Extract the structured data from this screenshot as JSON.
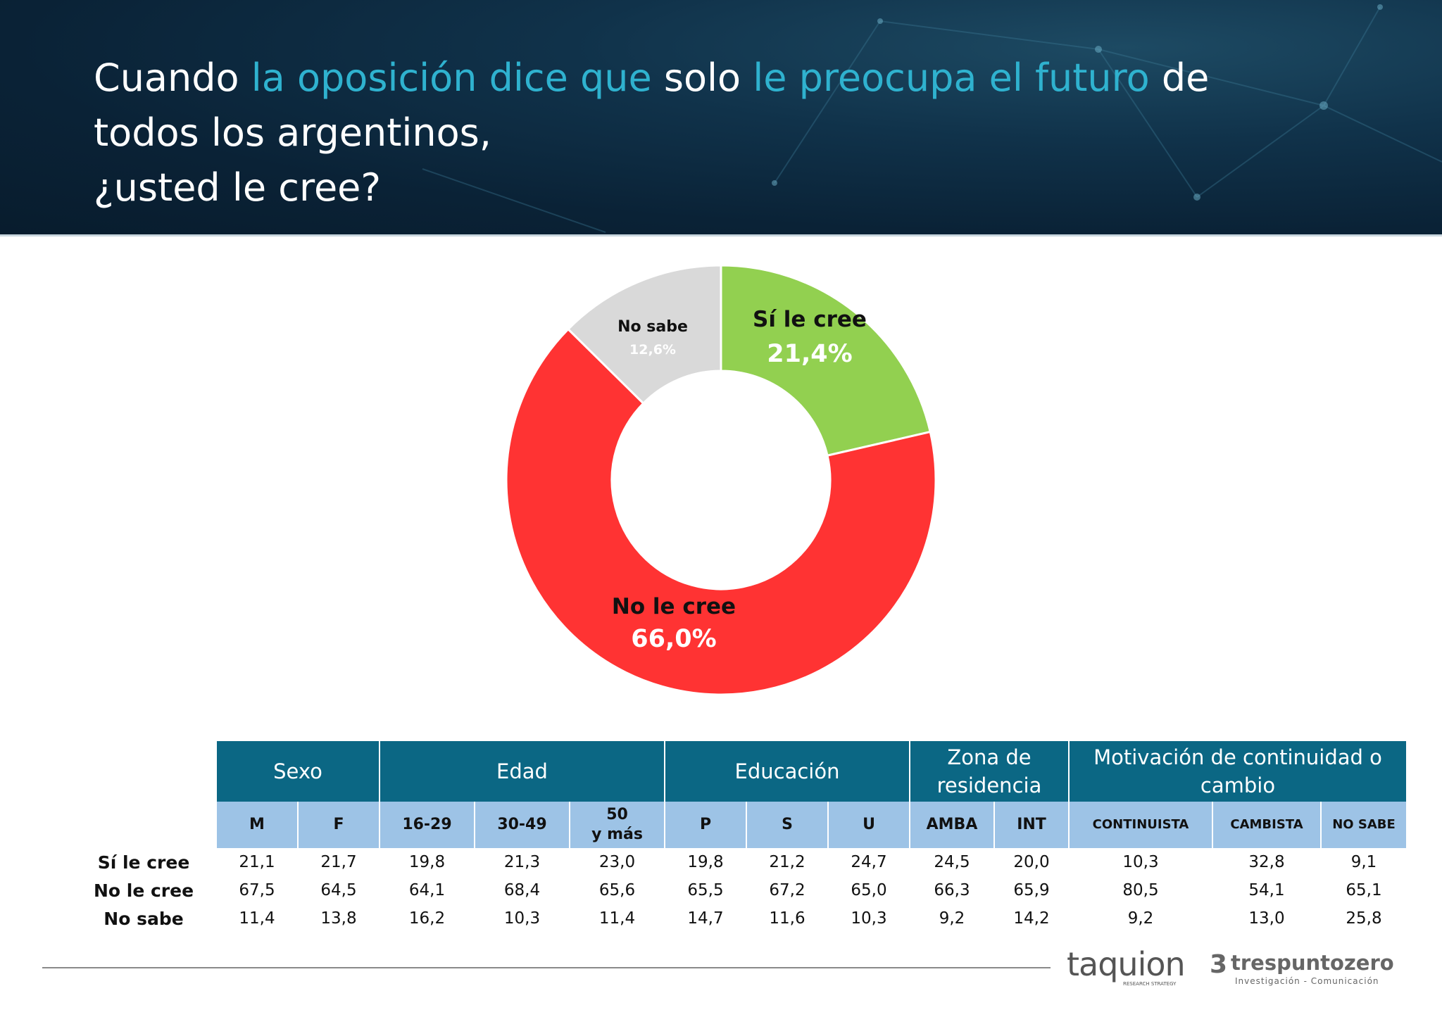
{
  "header": {
    "title_parts": [
      {
        "text": "Cuando ",
        "hl": false
      },
      {
        "text": "la oposición dice que",
        "hl": true
      },
      {
        "text": " solo ",
        "hl": false
      },
      {
        "text": "le preocupa el futuro",
        "hl": true
      },
      {
        "text": " de",
        "hl": false
      }
    ],
    "title_line2": "todos los argentinos,",
    "title_line3": "¿usted le cree?"
  },
  "chart_data": {
    "type": "pie",
    "donut": true,
    "labels": [
      "Sí le cree",
      "No le cree",
      "No sabe"
    ],
    "values": [
      21.4,
      66.0,
      12.6
    ],
    "value_labels": [
      "21,4%",
      "66,0%",
      "12,6%"
    ],
    "colors": [
      "#92d050",
      "#ff3333",
      "#d9d9d9"
    ]
  },
  "table": {
    "groups": [
      "Sexo",
      "Edad",
      "Educación",
      "Zona de residencia",
      "Motivación de continuidad o cambio"
    ],
    "group_lines": {
      "zona": [
        "Zona de",
        "residencia"
      ],
      "motiv": [
        "Motivación de continuidad o",
        "cambio"
      ]
    },
    "columns": [
      "M",
      "F",
      "16-29",
      "30-49",
      "50 y más",
      "P",
      "S",
      "U",
      "AMBA",
      "INT",
      "CONTINUISTA",
      "CAMBISTA",
      "NO SABE"
    ],
    "col_50_lines": [
      "50",
      "y más"
    ],
    "rows": [
      {
        "label": "Sí le cree",
        "values": [
          "21,1",
          "21,7",
          "19,8",
          "21,3",
          "23,0",
          "19,8",
          "21,2",
          "24,7",
          "24,5",
          "20,0",
          "10,3",
          "32,8",
          "9,1"
        ]
      },
      {
        "label": "No le cree",
        "values": [
          "67,5",
          "64,5",
          "64,1",
          "68,4",
          "65,6",
          "65,5",
          "67,2",
          "65,0",
          "66,3",
          "65,9",
          "80,5",
          "54,1",
          "65,1"
        ]
      },
      {
        "label": "No sabe",
        "values": [
          "11,4",
          "13,8",
          "16,2",
          "10,3",
          "11,4",
          "14,7",
          "11,6",
          "10,3",
          "9,2",
          "14,2",
          "9,2",
          "13,0",
          "25,8"
        ]
      }
    ]
  },
  "footer": {
    "logo1": "taquion",
    "logo1_sub": "RESEARCH STRATEGY",
    "logo2": "trespuntozero",
    "logo2_sub": "Investigación - Comunicación"
  }
}
